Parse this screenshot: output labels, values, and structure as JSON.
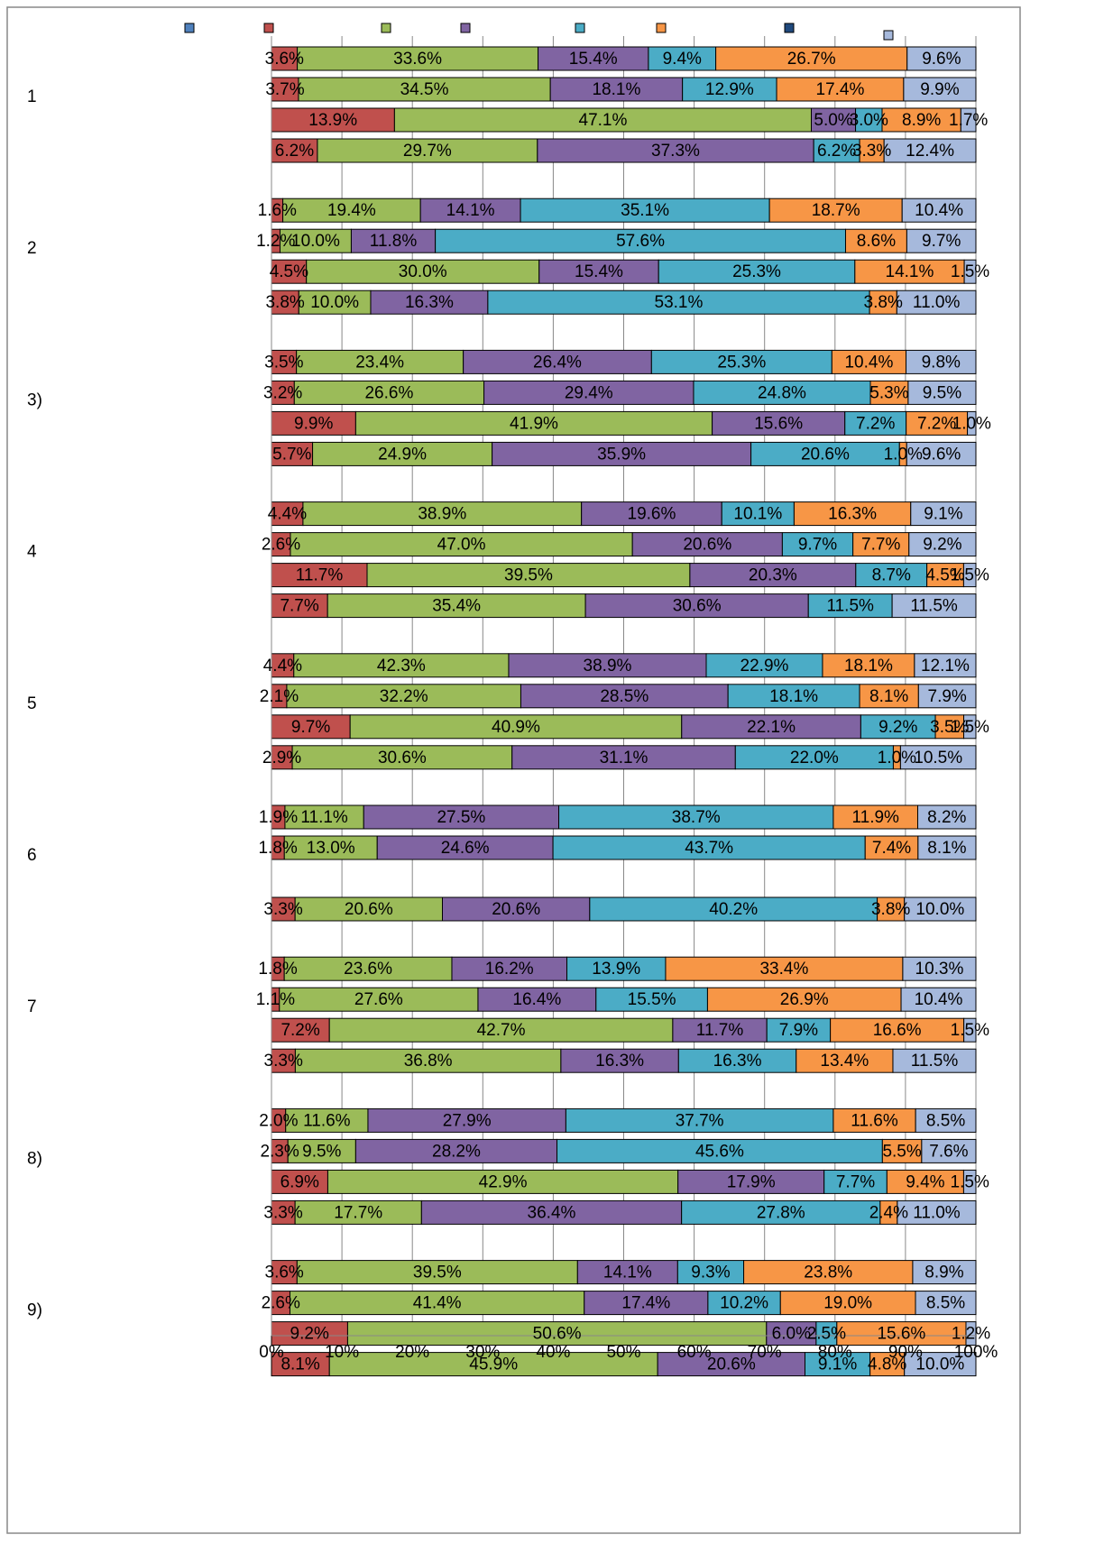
{
  "chart_data": {
    "type": "bar",
    "orientation": "horizontal",
    "stack": "percent",
    "groups": [
      "1",
      "2",
      "3)",
      "4",
      "5",
      "6",
      "7",
      "8)",
      "9)"
    ],
    "bars_per_group": 4,
    "xlim": [
      0,
      100
    ],
    "xticks": [
      {
        "value": 0,
        "label": "0%"
      },
      {
        "value": 10,
        "label": "10%"
      },
      {
        "value": 20,
        "label": "20%"
      },
      {
        "value": 30,
        "label": "30%"
      },
      {
        "value": 40,
        "label": "40%"
      },
      {
        "value": 50,
        "label": "50%"
      },
      {
        "value": 60,
        "label": "60%"
      },
      {
        "value": 70,
        "label": "70%"
      },
      {
        "value": 80,
        "label": "80%"
      },
      {
        "value": 90,
        "label": "90%"
      },
      {
        "value": 100,
        "label": "100%"
      }
    ],
    "grid": true,
    "series": [
      {
        "color": "#4f81bd",
        "values": [
          null,
          null,
          null,
          null,
          null,
          null,
          null,
          null,
          null,
          null,
          null,
          null,
          null,
          null,
          null,
          null,
          null,
          null,
          null,
          null,
          null,
          null,
          null,
          null,
          null,
          null,
          null,
          null,
          null,
          null,
          null,
          null,
          null,
          null,
          null,
          null
        ]
      },
      {
        "color": "#c0504d",
        "values": [
          3.6,
          3.7,
          13.9,
          6.2,
          1.6,
          1.2,
          4.5,
          3.8,
          3.5,
          3.2,
          9.9,
          5.7,
          4.4,
          2.6,
          11.7,
          7.7,
          4.4,
          2.1,
          9.7,
          2.9,
          1.9,
          1.8,
          null,
          3.3,
          1.8,
          1.1,
          7.2,
          3.3,
          2.0,
          2.3,
          6.9,
          3.3,
          3.6,
          2.6,
          9.2,
          8.1
        ],
        "value_labels": [
          "3.6%",
          "3.7%",
          "13.9%",
          "6.2%",
          "1.6%",
          "1.2%",
          "4.5%",
          "3.8%",
          "3.5%",
          "3.2%",
          "9.9%",
          "5.7%",
          "4.4%",
          "2.6%",
          "11.7%",
          "7.7%",
          "4.4%",
          "2.1%",
          "9.7%",
          "2.9%",
          "1.9%",
          "1.8%",
          null,
          "3.3%",
          "1.8%",
          "1.1%",
          "7.2%",
          "3.3%",
          "2.0%",
          "2.3%",
          "6.9%",
          "3.3%",
          "3.6%",
          "2.6%",
          "9.2%",
          "8.1%"
        ]
      },
      {
        "color": "#9bbb59",
        "values": [
          33.6,
          34.5,
          47.1,
          29.7,
          19.4,
          10.0,
          30.0,
          10.0,
          23.4,
          26.6,
          41.9,
          24.9,
          38.9,
          47.0,
          39.5,
          35.4,
          42.3,
          32.2,
          40.9,
          30.6,
          11.1,
          13.0,
          null,
          20.6,
          23.6,
          27.6,
          42.7,
          36.8,
          11.6,
          9.5,
          42.9,
          17.7,
          39.5,
          41.4,
          50.6,
          45.9
        ],
        "value_labels": [
          "33.6%",
          "34.5%",
          "47.1%",
          "29.7%",
          "19.4%",
          "10.0%",
          "30.0%",
          "10.0%",
          "23.4%",
          "26.6%",
          "41.9%",
          "24.9%",
          "38.9%",
          "47.0%",
          "39.5%",
          "35.4%",
          "42.3%",
          "32.2%",
          "40.9%",
          "30.6%",
          "11.1%",
          "13.0%",
          null,
          "20.6%",
          "23.6%",
          "27.6%",
          "42.7%",
          "36.8%",
          "11.6%",
          "9.5%",
          "42.9%",
          "17.7%",
          "39.5%",
          "41.4%",
          "50.6%",
          "45.9%"
        ]
      },
      {
        "color": "#8064a2",
        "values": [
          15.4,
          18.1,
          5.0,
          37.3,
          14.1,
          11.8,
          15.4,
          16.3,
          26.4,
          29.4,
          15.6,
          35.9,
          19.6,
          20.6,
          20.3,
          30.6,
          38.9,
          28.5,
          22.1,
          31.1,
          27.5,
          24.6,
          null,
          20.6,
          16.2,
          16.4,
          11.7,
          16.3,
          27.9,
          28.2,
          17.9,
          36.4,
          14.1,
          17.4,
          6.0,
          20.6
        ],
        "value_labels": [
          "15.4%",
          "18.1%",
          "5.0%",
          "37.3%",
          "14.1%",
          "11.8%",
          "15.4%",
          "16.3%",
          "26.4%",
          "29.4%",
          "15.6%",
          "35.9%",
          "19.6%",
          "20.6%",
          "20.3%",
          "30.6%",
          "38.9%",
          "28.5%",
          "22.1%",
          "31.1%",
          "27.5%",
          "24.6%",
          null,
          "20.6%",
          "16.2%",
          "16.4%",
          "11.7%",
          "16.3%",
          "27.9%",
          "28.2%",
          "17.9%",
          "36.4%",
          "14.1%",
          "17.4%",
          "6.0%",
          "20.6%"
        ]
      },
      {
        "color": "#4bacc6",
        "values": [
          9.4,
          12.9,
          3.0,
          6.2,
          35.1,
          57.6,
          25.3,
          53.1,
          25.3,
          24.8,
          7.2,
          20.6,
          10.1,
          9.7,
          8.7,
          11.5,
          22.9,
          18.1,
          9.2,
          22.0,
          38.7,
          43.7,
          null,
          40.2,
          13.9,
          15.5,
          7.9,
          16.3,
          37.7,
          45.6,
          7.7,
          27.8,
          9.3,
          10.2,
          2.5,
          9.1
        ],
        "value_labels": [
          "9.4%",
          "12.9%",
          "3.0%",
          "6.2%",
          "35.1%",
          "57.6%",
          "25.3%",
          "53.1%",
          "25.3%",
          "24.8%",
          "7.2%",
          "20.6%",
          "10.1%",
          "9.7%",
          "8.7%",
          "11.5%",
          "22.9%",
          "18.1%",
          "9.2%",
          "22.0%",
          "38.7%",
          "43.7%",
          null,
          "40.2%",
          "13.9%",
          "15.5%",
          "7.9%",
          "16.3%",
          "37.7%",
          "45.6%",
          "7.7%",
          "27.8%",
          "9.3%",
          "10.2%",
          "2.5%",
          "9.1%"
        ]
      },
      {
        "color": "#f79646",
        "values": [
          26.7,
          17.4,
          8.9,
          3.3,
          18.7,
          8.6,
          14.1,
          3.8,
          10.4,
          5.3,
          7.2,
          1.0,
          16.3,
          7.7,
          4.5,
          null,
          18.1,
          8.1,
          3.5,
          1.0,
          11.9,
          7.4,
          null,
          3.8,
          33.4,
          26.9,
          16.6,
          13.4,
          11.6,
          5.5,
          9.4,
          2.4,
          23.8,
          19.0,
          15.6,
          4.8
        ],
        "value_labels": [
          "26.7%",
          "17.4%",
          "8.9%",
          "3.3%",
          "18.7%",
          "8.6%",
          "14.1%",
          "3.8%",
          "10.4%",
          "5.3%",
          "7.2%",
          "1.0%",
          "16.3%",
          "7.7%",
          "4.5%",
          null,
          "18.1%",
          "8.1%",
          "3.5%",
          "1.0%",
          "11.9%",
          "7.4%",
          null,
          "3.8%",
          "33.4%",
          "26.9%",
          "16.6%",
          "13.4%",
          "11.6%",
          "5.5%",
          "9.4%",
          "2.4%",
          "23.8%",
          "19.0%",
          "15.6%",
          "4.8%"
        ]
      },
      {
        "color": "#1f497d",
        "values": [
          null,
          null,
          null,
          null,
          null,
          null,
          null,
          null,
          null,
          null,
          null,
          null,
          null,
          null,
          null,
          null,
          null,
          null,
          null,
          null,
          null,
          null,
          null,
          null,
          null,
          null,
          null,
          null,
          null,
          null,
          null,
          null,
          null,
          null,
          null,
          null
        ]
      },
      {
        "color": "#a6b9dc",
        "values": [
          9.6,
          9.9,
          1.7,
          12.4,
          10.4,
          9.7,
          1.5,
          11.0,
          9.8,
          9.5,
          1.0,
          9.6,
          9.1,
          9.2,
          1.5,
          11.5,
          12.1,
          7.9,
          1.5,
          10.5,
          8.2,
          8.1,
          null,
          10.0,
          10.3,
          10.4,
          1.5,
          11.5,
          8.5,
          7.6,
          1.5,
          11.0,
          8.9,
          8.5,
          1.2,
          10.0
        ],
        "value_labels": [
          "9.6%",
          "9.9%",
          "1.7%",
          "12.4%",
          "10.4%",
          "9.7%",
          "1.5%",
          "11.0%",
          "9.8%",
          "9.5%",
          "1.0%",
          "9.6%",
          "9.1%",
          "9.2%",
          "1.5%",
          "11.5%",
          "12.1%",
          "7.9%",
          "1.5%",
          "10.5%",
          "8.2%",
          "8.1%",
          null,
          "10.0%",
          "10.3%",
          "10.4%",
          "1.5%",
          "11.5%",
          "8.5%",
          "7.6%",
          "1.5%",
          "11.0%",
          "8.9%",
          "8.5%",
          "1.2%",
          "10.0%"
        ]
      }
    ]
  }
}
